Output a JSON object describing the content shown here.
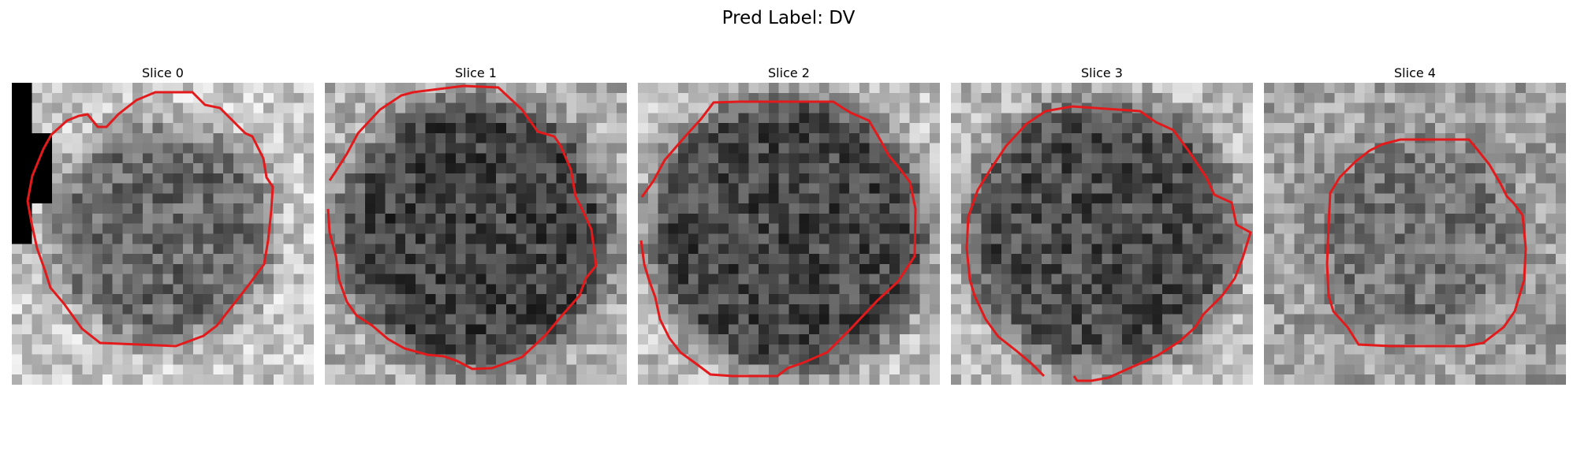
{
  "figure": {
    "title": "Pred Label: DV"
  },
  "panels": [
    {
      "title": "Slice 0"
    },
    {
      "title": "Slice 1"
    },
    {
      "title": "Slice 2"
    },
    {
      "title": "Slice 3"
    },
    {
      "title": "Slice 4"
    }
  ],
  "colors": {
    "contour": "#e31a1c",
    "background": "#ffffff"
  }
}
